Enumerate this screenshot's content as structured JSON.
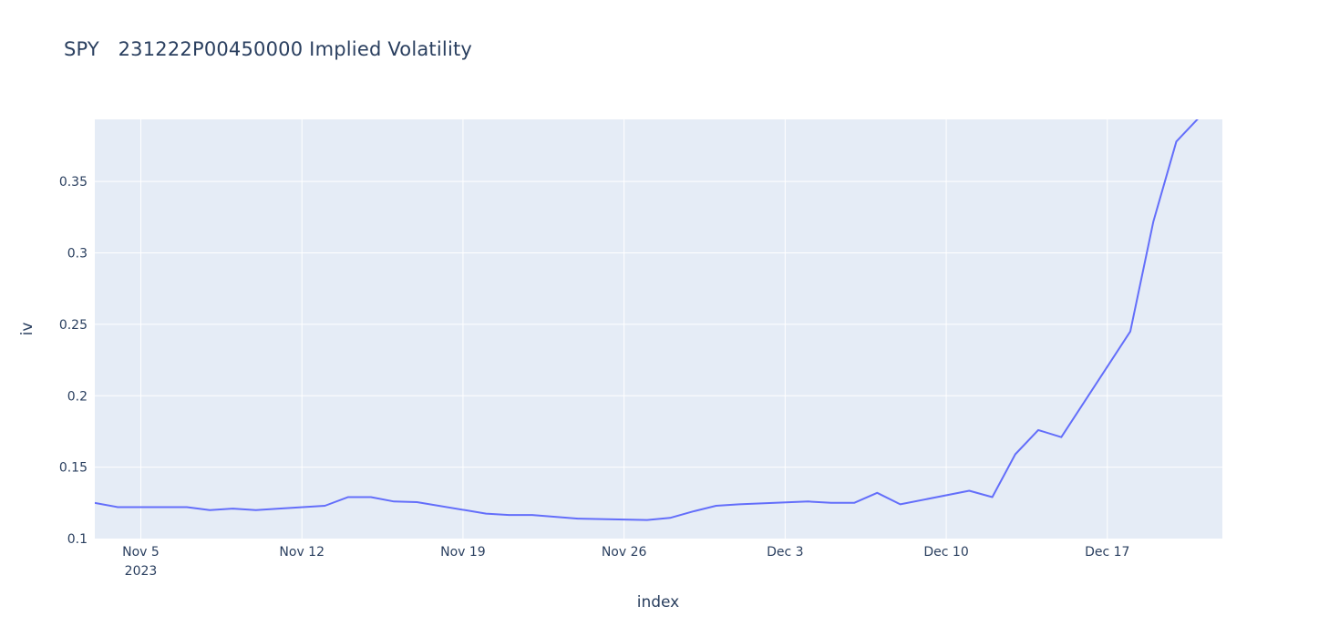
{
  "chart_data": {
    "type": "line",
    "title": "SPY   231222P00450000 Implied Volatility",
    "xlabel": "index",
    "ylabel": "iv",
    "grid": true,
    "legend": "none",
    "xlim": [
      "2023-11-03",
      "2023-12-22"
    ],
    "ylim": [
      0.1,
      0.3935
    ],
    "x_ticks": [
      {
        "date": "2023-11-05",
        "label": "Nov 5",
        "sublabel": "2023"
      },
      {
        "date": "2023-11-12",
        "label": "Nov 12",
        "sublabel": ""
      },
      {
        "date": "2023-11-19",
        "label": "Nov 19",
        "sublabel": ""
      },
      {
        "date": "2023-11-26",
        "label": "Nov 26",
        "sublabel": ""
      },
      {
        "date": "2023-12-03",
        "label": "Dec 3",
        "sublabel": ""
      },
      {
        "date": "2023-12-10",
        "label": "Dec 10",
        "sublabel": ""
      },
      {
        "date": "2023-12-17",
        "label": "Dec 17",
        "sublabel": ""
      }
    ],
    "y_ticks": [
      {
        "value": 0.1,
        "label": "0.1"
      },
      {
        "value": 0.15,
        "label": "0.15"
      },
      {
        "value": 0.2,
        "label": "0.2"
      },
      {
        "value": 0.25,
        "label": "0.25"
      },
      {
        "value": 0.3,
        "label": "0.3"
      },
      {
        "value": 0.35,
        "label": "0.35"
      }
    ],
    "series": [
      {
        "color": "#636efa",
        "x": [
          "2023-11-03",
          "2023-11-04",
          "2023-11-06",
          "2023-11-07",
          "2023-11-08",
          "2023-11-09",
          "2023-11-10",
          "2023-11-11",
          "2023-11-13",
          "2023-11-14",
          "2023-11-15",
          "2023-11-16",
          "2023-11-17",
          "2023-11-20",
          "2023-11-21",
          "2023-11-22",
          "2023-11-24",
          "2023-11-27",
          "2023-11-28",
          "2023-11-29",
          "2023-11-30",
          "2023-12-01",
          "2023-12-04",
          "2023-12-05",
          "2023-12-06",
          "2023-12-07",
          "2023-12-08",
          "2023-12-11",
          "2023-12-12",
          "2023-12-13",
          "2023-12-14",
          "2023-12-15",
          "2023-12-18",
          "2023-12-19",
          "2023-12-20",
          "2023-12-21"
        ],
        "values": [
          0.125,
          0.122,
          0.122,
          0.122,
          0.12,
          0.121,
          0.12,
          0.121,
          0.123,
          0.129,
          0.129,
          0.126,
          0.1255,
          0.1175,
          0.1165,
          0.1165,
          0.114,
          0.113,
          0.1145,
          0.119,
          0.123,
          0.124,
          0.126,
          0.125,
          0.125,
          0.132,
          0.124,
          0.1335,
          0.129,
          0.159,
          0.176,
          0.171,
          0.245,
          0.322,
          0.378,
          0.395
        ]
      }
    ]
  }
}
